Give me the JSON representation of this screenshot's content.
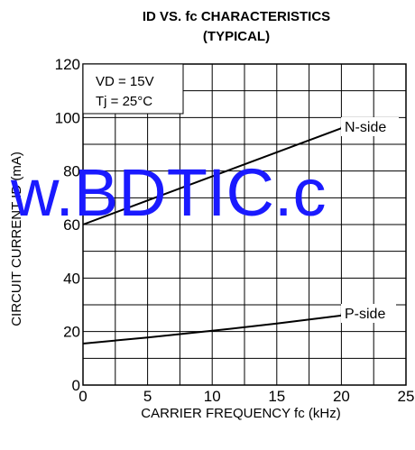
{
  "chart_data": {
    "type": "line",
    "title_line1": "ID VS. fc CHARACTERISTICS",
    "title_line2": "(TYPICAL)",
    "xlabel": "CARRIER FREQUENCY  fc (kHz)",
    "ylabel": "CIRCUIT CURRENT ID (mA)",
    "xlim": [
      0,
      25
    ],
    "ylim": [
      0,
      120
    ],
    "xticks": [
      0,
      5,
      10,
      15,
      20,
      25
    ],
    "yticks": [
      0,
      20,
      40,
      60,
      80,
      100,
      120
    ],
    "grid": true,
    "conditions": [
      "VD = 15V",
      "Tj = 25°C"
    ],
    "series": [
      {
        "name": "N-side",
        "x": [
          0,
          20
        ],
        "y": [
          60,
          96
        ]
      },
      {
        "name": "P-side",
        "x": [
          0,
          5,
          10,
          15,
          20
        ],
        "y": [
          15.5,
          17.8,
          20.3,
          23,
          26
        ]
      }
    ],
    "line_color": "#000000"
  },
  "watermark": {
    "text": "w.BDTIC.c",
    "color": "#1a1aff"
  }
}
